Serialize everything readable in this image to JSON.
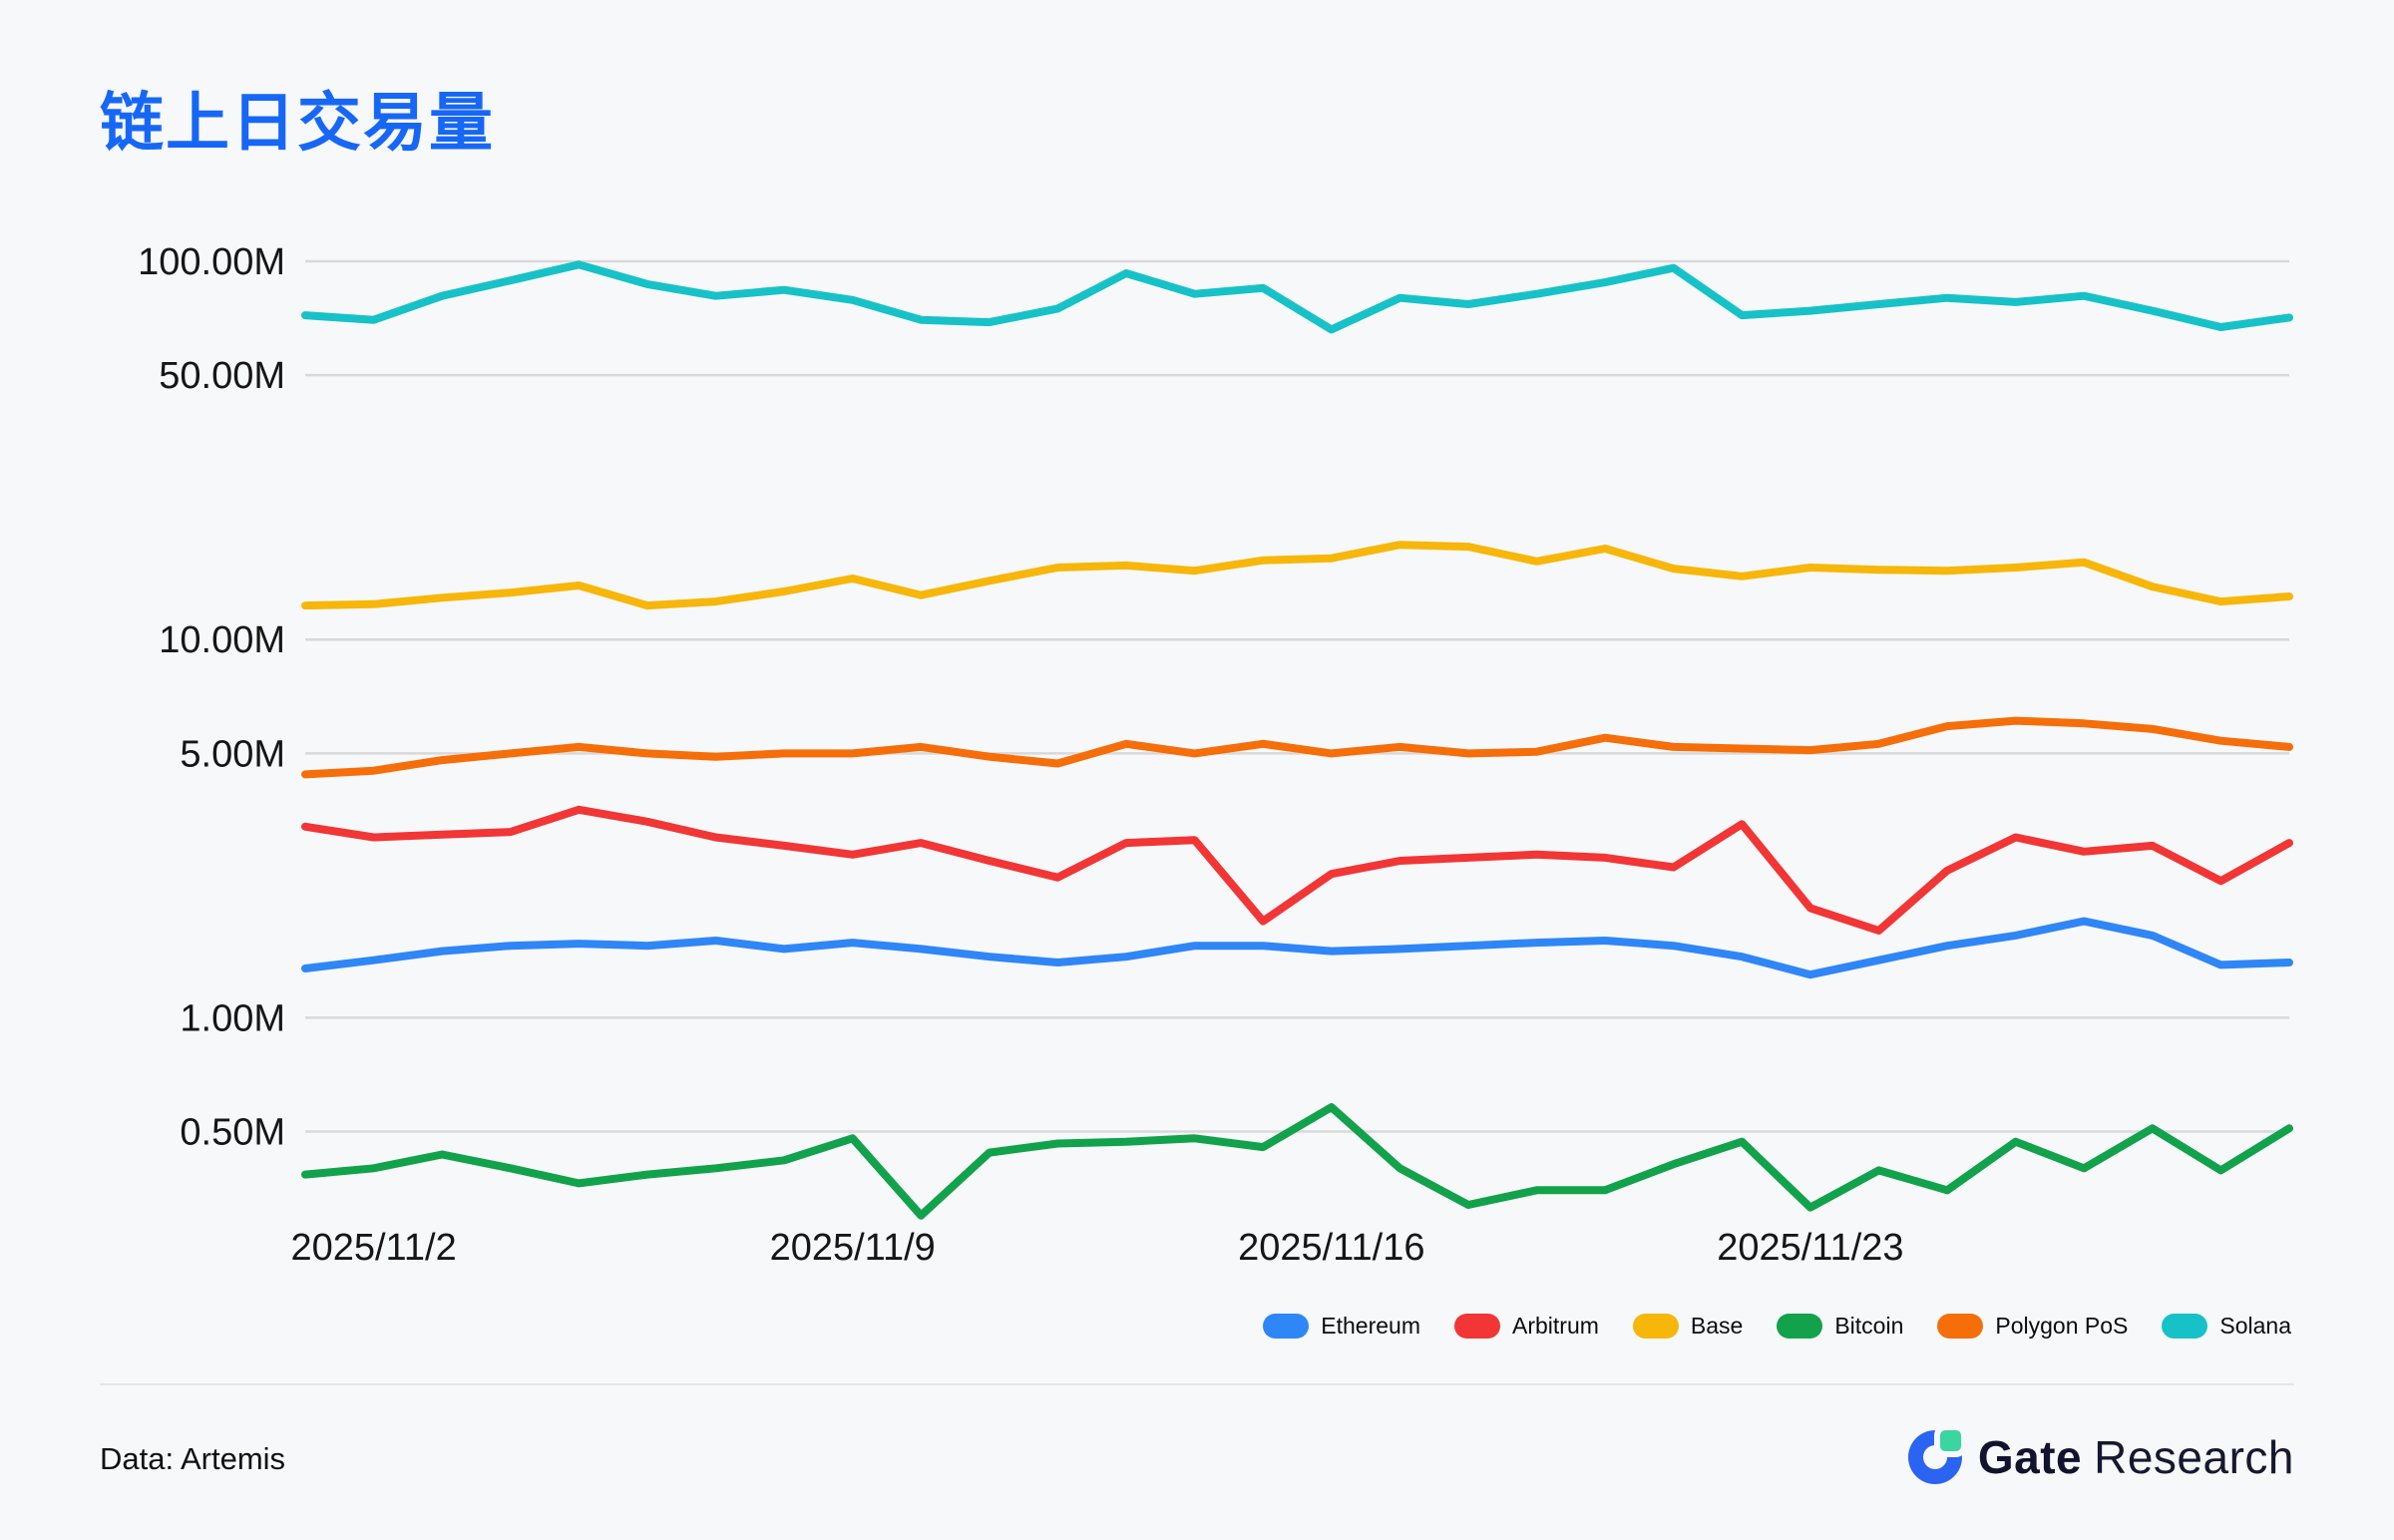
{
  "title": "链上日交易量",
  "colors": {
    "background": "#f7f8fa",
    "title": "#1767f6",
    "gridline": "#d9d9d9",
    "axis_text": "#161616",
    "divider": "#e4e5e9",
    "logo_blue": "#2b63f2",
    "logo_green": "#3bd6a0",
    "logo_text": "#12132e"
  },
  "chart_data": {
    "type": "line",
    "title": "链上日交易量",
    "y_scale": "log",
    "y_unit": "M",
    "grid": true,
    "legend_position": "bottom-right",
    "ylim": [
      0.28,
      110
    ],
    "y_ticks": [
      {
        "label": "100.00M",
        "value": 100
      },
      {
        "label": "50.00M",
        "value": 50
      },
      {
        "label": "10.00M",
        "value": 10
      },
      {
        "label": "5.00M",
        "value": 5
      },
      {
        "label": "1.00M",
        "value": 1
      },
      {
        "label": "0.50M",
        "value": 0.5
      }
    ],
    "x_ticks": [
      {
        "label": "2025/11/2",
        "day_index": 1
      },
      {
        "label": "2025/11/9",
        "day_index": 8
      },
      {
        "label": "2025/11/16",
        "day_index": 15
      },
      {
        "label": "2025/11/23",
        "day_index": 22
      }
    ],
    "x_span": "2025/11/1 - 2025/11/30",
    "series": [
      {
        "name": "Ethereum",
        "color": "#2f86f6",
        "values": [
          1.35,
          1.42,
          1.5,
          1.55,
          1.57,
          1.55,
          1.6,
          1.52,
          1.58,
          1.52,
          1.45,
          1.4,
          1.45,
          1.55,
          1.55,
          1.5,
          1.52,
          1.55,
          1.58,
          1.6,
          1.55,
          1.45,
          1.3,
          1.42,
          1.55,
          1.65,
          1.8,
          1.65,
          1.38,
          1.4
        ]
      },
      {
        "name": "Arbitrum",
        "color": "#f23535",
        "values": [
          3.2,
          3.0,
          3.05,
          3.1,
          3.55,
          3.3,
          3.0,
          2.85,
          2.7,
          2.9,
          2.6,
          2.35,
          2.9,
          2.95,
          1.8,
          2.4,
          2.6,
          2.65,
          2.7,
          2.65,
          2.5,
          3.25,
          1.95,
          1.7,
          2.45,
          3.0,
          2.75,
          2.85,
          2.3,
          2.9
        ]
      },
      {
        "name": "Base",
        "color": "#f7b60a",
        "values": [
          12.3,
          12.4,
          12.9,
          13.3,
          13.9,
          12.3,
          12.6,
          13.4,
          14.5,
          13.1,
          14.3,
          15.5,
          15.7,
          15.2,
          16.2,
          16.4,
          17.8,
          17.6,
          16.1,
          17.4,
          15.4,
          14.7,
          15.5,
          15.3,
          15.2,
          15.5,
          16.0,
          13.8,
          12.6,
          13.0
        ]
      },
      {
        "name": "Bitcoin",
        "color": "#12a24b",
        "values": [
          0.385,
          0.4,
          0.435,
          0.4,
          0.365,
          0.385,
          0.4,
          0.42,
          0.48,
          0.3,
          0.44,
          0.465,
          0.47,
          0.48,
          0.455,
          0.58,
          0.4,
          0.32,
          0.35,
          0.35,
          0.41,
          0.47,
          0.315,
          0.395,
          0.35,
          0.47,
          0.4,
          0.51,
          0.395,
          0.51
        ]
      },
      {
        "name": "Polygon PoS",
        "color": "#f56e0a",
        "values": [
          4.4,
          4.5,
          4.8,
          5.0,
          5.2,
          5.0,
          4.9,
          5.0,
          5.0,
          5.2,
          4.9,
          4.7,
          5.3,
          5.0,
          5.3,
          5.0,
          5.2,
          5.0,
          5.05,
          5.5,
          5.2,
          5.15,
          5.1,
          5.3,
          5.9,
          6.1,
          6.0,
          5.8,
          5.4,
          5.2
        ]
      },
      {
        "name": "Solana",
        "color": "#16c2c7",
        "values": [
          72,
          70,
          81,
          89,
          98,
          87,
          81,
          84,
          79,
          70,
          69,
          75,
          93,
          82,
          85,
          66,
          80,
          77,
          82,
          88,
          96,
          72,
          74,
          77,
          80,
          78,
          81,
          74,
          67,
          71
        ]
      }
    ]
  },
  "legend_order": [
    "Ethereum",
    "Arbitrum",
    "Base",
    "Bitcoin",
    "Polygon PoS",
    "Solana"
  ],
  "footer": {
    "source": "Data: Artemis",
    "logo_brand": "Gate",
    "logo_suffix": "Research"
  }
}
